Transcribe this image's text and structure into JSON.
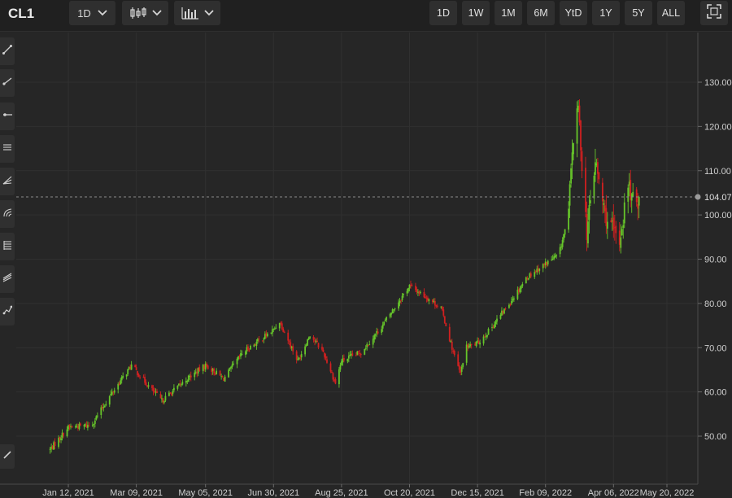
{
  "header": {
    "symbol": "CL1",
    "interval": "1D",
    "ranges": [
      "1D",
      "1W",
      "1M",
      "6M",
      "YtD",
      "1Y",
      "5Y",
      "ALL"
    ]
  },
  "toolbar_icons": [
    "trend-line-icon",
    "ray-icon",
    "horizontal-ray-icon",
    "parallel-channel-icon",
    "fib-retracement-icon",
    "fib-fan-icon",
    "fib-levels-icon",
    "pitchfork-icon",
    "path-icon"
  ],
  "colors": {
    "up": "#66c52a",
    "down": "#d02020",
    "background": "#262626",
    "grid": "#303030"
  },
  "chart_data": {
    "type": "candlestick",
    "symbol": "CL1",
    "ylim": [
      40,
      140
    ],
    "yticks": [
      50,
      60,
      70,
      80,
      90,
      100,
      110,
      120,
      130
    ],
    "ytick_labels": [
      "50.00",
      "60.00",
      "70.00",
      "80.00",
      "90.00",
      "100.00",
      "110.00",
      "120.00",
      "130.00"
    ],
    "xticks": [
      "2021-01-12",
      "2021-03-09",
      "2021-05-05",
      "2021-06-30",
      "2021-08-25",
      "2021-10-20",
      "2021-12-15",
      "2022-02-09",
      "2022-04-06",
      "2022-05-20"
    ],
    "xtick_labels": [
      "Jan 12, 2021",
      "Mar 09, 2021",
      "May 05, 2021",
      "Jun 30, 2021",
      "Aug 25, 2021",
      "Oct 20, 2021",
      "Dec 15, 2021",
      "Feb 09, 2022",
      "Apr 06, 2022",
      "May 20, 2022"
    ],
    "last_price": 104.07,
    "last_price_label": "104.07",
    "close_path": [
      [
        "2020-12-28",
        47
      ],
      [
        "2021-01-12",
        52
      ],
      [
        "2021-01-31",
        52.5
      ],
      [
        "2021-02-15",
        59
      ],
      [
        "2021-03-05",
        66
      ],
      [
        "2021-03-20",
        61
      ],
      [
        "2021-03-30",
        58
      ],
      [
        "2021-04-20",
        63
      ],
      [
        "2021-05-05",
        66
      ],
      [
        "2021-05-20",
        63
      ],
      [
        "2021-06-05",
        69
      ],
      [
        "2021-06-20",
        72
      ],
      [
        "2021-06-30",
        74
      ],
      [
        "2021-07-05",
        76
      ],
      [
        "2021-07-20",
        67
      ],
      [
        "2021-07-30",
        73
      ],
      [
        "2021-08-10",
        69
      ],
      [
        "2021-08-20",
        62
      ],
      [
        "2021-08-25",
        67
      ],
      [
        "2021-09-10",
        69
      ],
      [
        "2021-09-25",
        74
      ],
      [
        "2021-10-10",
        80
      ],
      [
        "2021-10-20",
        84
      ],
      [
        "2021-11-05",
        81
      ],
      [
        "2021-11-15",
        79
      ],
      [
        "2021-11-26",
        68
      ],
      [
        "2021-12-01",
        64
      ],
      [
        "2021-12-05",
        70
      ],
      [
        "2021-12-15",
        71
      ],
      [
        "2021-12-25",
        74
      ],
      [
        "2022-01-10",
        80
      ],
      [
        "2022-01-25",
        86
      ],
      [
        "2022-02-09",
        89
      ],
      [
        "2022-02-20",
        91
      ],
      [
        "2022-02-28",
        100
      ],
      [
        "2022-03-03",
        115
      ],
      [
        "2022-03-08",
        124
      ],
      [
        "2022-03-15",
        96
      ],
      [
        "2022-03-22",
        112
      ],
      [
        "2022-03-30",
        100
      ],
      [
        "2022-04-06",
        96
      ],
      [
        "2022-04-11",
        94
      ],
      [
        "2022-04-18",
        107
      ],
      [
        "2022-04-23",
        102
      ],
      [
        "2022-04-27",
        104.07
      ]
    ]
  }
}
